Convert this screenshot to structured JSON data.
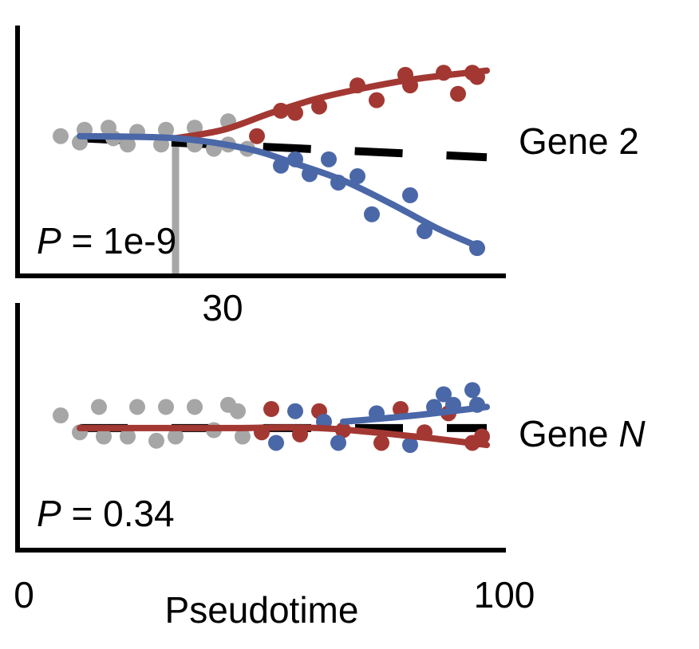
{
  "colors": {
    "axis": "#000000",
    "gray": "#a6a6a6",
    "red": "#a33833",
    "blue": "#4a67a8",
    "null_fit": "#000000"
  },
  "x_axis": {
    "label": "Pseudotime",
    "min_label": "0",
    "max_label": "100",
    "range": [
      0,
      100
    ]
  },
  "chart_data": [
    {
      "type": "scatter",
      "gene_label": "Gene 2",
      "p_prefix": "P",
      "p_value_text": " = 1e-9",
      "branch_point": 30,
      "branch_label": "30",
      "xlim": [
        0,
        100
      ],
      "ylim": [
        0,
        10
      ],
      "series": [
        {
          "color_key": "gray",
          "points": [
            [
              6,
              6.2
            ],
            [
              10,
              5.9
            ],
            [
              11,
              6.5
            ],
            [
              16,
              6.6
            ],
            [
              17,
              6.1
            ],
            [
              20,
              5.8
            ],
            [
              22,
              6.4
            ],
            [
              27,
              5.8
            ],
            [
              28,
              6.5
            ],
            [
              34,
              5.8
            ],
            [
              34,
              6.6
            ],
            [
              38,
              5.6
            ],
            [
              41,
              5.8
            ],
            [
              41,
              6.9
            ],
            [
              45,
              5.6
            ]
          ]
        },
        {
          "color_key": "red",
          "points": [
            [
              47,
              6.2
            ],
            [
              52,
              7.4
            ],
            [
              55,
              7.3
            ],
            [
              60,
              7.6
            ],
            [
              68,
              8.6
            ],
            [
              72,
              7.9
            ],
            [
              78,
              9.1
            ],
            [
              79,
              8.6
            ],
            [
              86,
              9.2
            ],
            [
              89,
              8.2
            ],
            [
              92,
              9.2
            ],
            [
              93,
              9.0
            ]
          ]
        },
        {
          "color_key": "blue",
          "points": [
            [
              52,
              4.8
            ],
            [
              55,
              5.1
            ],
            [
              58,
              4.4
            ],
            [
              62,
              5.1
            ],
            [
              64,
              4.0
            ],
            [
              68,
              4.3
            ],
            [
              71,
              2.5
            ],
            [
              79,
              3.4
            ],
            [
              82,
              1.7
            ],
            [
              93,
              0.9
            ]
          ]
        }
      ],
      "fits": [
        {
          "color_key": "red",
          "points": [
            [
              30,
              6.1
            ],
            [
              40,
              6.5
            ],
            [
              50,
              7.3
            ],
            [
              60,
              8.0
            ],
            [
              70,
              8.5
            ],
            [
              80,
              8.9
            ],
            [
              95,
              9.3
            ]
          ]
        },
        {
          "color_key": "blue",
          "points": [
            [
              10,
              6.2
            ],
            [
              30,
              6.1
            ],
            [
              45,
              5.6
            ],
            [
              55,
              4.9
            ],
            [
              65,
              4.1
            ],
            [
              75,
              3.0
            ],
            [
              85,
              1.8
            ],
            [
              94,
              0.9
            ]
          ]
        }
      ],
      "null_fit": {
        "points": [
          [
            10,
            6.1
          ],
          [
            95,
            5.2
          ]
        ],
        "dashed": true
      }
    },
    {
      "type": "scatter",
      "gene_label": "Gene ",
      "gene_label_italic": "N",
      "p_prefix": "P",
      "p_value_text": " = 0.34",
      "xlim": [
        0,
        100
      ],
      "ylim": [
        0,
        10
      ],
      "series": [
        {
          "color_key": "gray",
          "points": [
            [
              6,
              6.0
            ],
            [
              10,
              5.2
            ],
            [
              14,
              6.4
            ],
            [
              15,
              5.0
            ],
            [
              20,
              5.0
            ],
            [
              22,
              6.4
            ],
            [
              26,
              4.8
            ],
            [
              28,
              6.4
            ],
            [
              30,
              5.0
            ],
            [
              34,
              6.4
            ],
            [
              38,
              5.3
            ],
            [
              41,
              6.5
            ],
            [
              43,
              6.2
            ],
            [
              44,
              5.0
            ]
          ]
        },
        {
          "color_key": "red",
          "points": [
            [
              48,
              5.2
            ],
            [
              50,
              6.3
            ],
            [
              56,
              5.1
            ],
            [
              60,
              6.2
            ],
            [
              65,
              5.3
            ],
            [
              73,
              4.7
            ],
            [
              77,
              6.3
            ],
            [
              82,
              5.2
            ],
            [
              87,
              6.1
            ],
            [
              92,
              4.7
            ],
            [
              94,
              5.0
            ]
          ]
        },
        {
          "color_key": "blue",
          "points": [
            [
              51,
              4.7
            ],
            [
              55,
              6.2
            ],
            [
              61,
              5.7
            ],
            [
              64,
              4.7
            ],
            [
              72,
              6.1
            ],
            [
              79,
              4.6
            ],
            [
              84,
              6.4
            ],
            [
              86,
              7.0
            ],
            [
              88,
              6.5
            ],
            [
              92,
              7.2
            ],
            [
              93,
              6.5
            ]
          ]
        }
      ],
      "fits": [
        {
          "color_key": "red",
          "points": [
            [
              10,
              5.4
            ],
            [
              40,
              5.4
            ],
            [
              60,
              5.4
            ],
            [
              80,
              5.0
            ],
            [
              95,
              4.6
            ]
          ]
        },
        {
          "color_key": "blue",
          "points": [
            [
              65,
              5.7
            ],
            [
              80,
              6.0
            ],
            [
              95,
              6.4
            ]
          ]
        }
      ],
      "null_fit": {
        "points": [
          [
            10,
            5.4
          ],
          [
            95,
            5.4
          ]
        ],
        "dashed": true
      }
    }
  ]
}
